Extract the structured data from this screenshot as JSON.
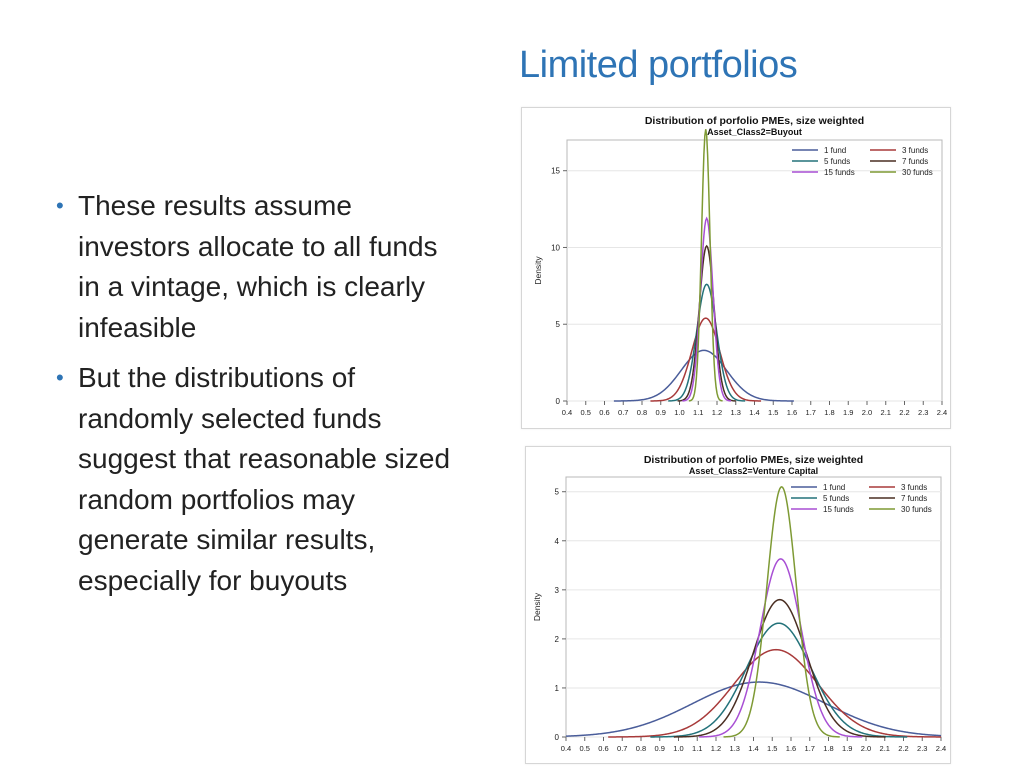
{
  "slide": {
    "title": "Limited portfolios",
    "bullets": [
      "These results assume investors allocate to all funds in a vintage, which is clearly infeasible",
      "But the distributions of randomly selected funds suggest that reasonable sized random portfolios may generate similar results, especially for buyouts"
    ],
    "bullet_icon": "•"
  },
  "chart_data": [
    {
      "type": "line",
      "title": "Distribution of porfolio PMEs, size weighted",
      "subtitle": "Asset_Class2=Buyout",
      "xlabel": "",
      "ylabel": "Density",
      "xlim": [
        0.4,
        2.4
      ],
      "ylim": [
        0,
        17
      ],
      "x_ticks": [
        "0.4",
        "0.5",
        "0.6",
        "0.7",
        "0.8",
        "0.9",
        "1.0",
        "1.1",
        "1.2",
        "1.3",
        "1.4",
        "1.5",
        "1.6",
        "1.7",
        "1.8",
        "1.9",
        "2.0",
        "2.1",
        "2.2",
        "2.3",
        "2.4"
      ],
      "y_ticks": [
        0,
        5,
        10,
        15
      ],
      "grid": true,
      "legend_position": "top-right",
      "series": [
        {
          "name": "1 fund",
          "color": "#4a5d9a",
          "mean": 1.13,
          "peak": 3.3
        },
        {
          "name": "3 funds",
          "color": "#a83a3a",
          "mean": 1.14,
          "peak": 5.4
        },
        {
          "name": "5 funds",
          "color": "#23727a",
          "mean": 1.145,
          "peak": 7.6
        },
        {
          "name": "7 funds",
          "color": "#4a2e22",
          "mean": 1.145,
          "peak": 10.1
        },
        {
          "name": "15 funds",
          "color": "#a84fd4",
          "mean": 1.145,
          "peak": 11.9
        },
        {
          "name": "30 funds",
          "color": "#7e9a34",
          "mean": 1.14,
          "peak": 17.7
        }
      ]
    },
    {
      "type": "line",
      "title": "Distribution of porfolio PMEs, size weighted",
      "subtitle": "Asset_Class2=Venture Capital",
      "xlabel": "",
      "ylabel": "Density",
      "xlim": [
        0.4,
        2.4
      ],
      "ylim": [
        0,
        5.3
      ],
      "x_ticks": [
        "0.4",
        "0.5",
        "0.6",
        "0.7",
        "0.8",
        "0.9",
        "1.0",
        "1.1",
        "1.2",
        "1.3",
        "1.4",
        "1.5",
        "1.6",
        "1.7",
        "1.8",
        "1.9",
        "2.0",
        "2.1",
        "2.2",
        "2.3",
        "2.4"
      ],
      "y_ticks": [
        0,
        1,
        2,
        3,
        4,
        5
      ],
      "grid": true,
      "legend_position": "top-right",
      "series": [
        {
          "name": "1 fund",
          "color": "#4a5d9a",
          "mean": 1.43,
          "peak": 1.12
        },
        {
          "name": "3 funds",
          "color": "#a83a3a",
          "mean": 1.52,
          "peak": 1.78
        },
        {
          "name": "5 funds",
          "color": "#23727a",
          "mean": 1.535,
          "peak": 2.32
        },
        {
          "name": "7 funds",
          "color": "#4a2e22",
          "mean": 1.54,
          "peak": 2.8
        },
        {
          "name": "15 funds",
          "color": "#a84fd4",
          "mean": 1.545,
          "peak": 3.63
        },
        {
          "name": "30 funds",
          "color": "#7e9a34",
          "mean": 1.55,
          "peak": 5.1
        }
      ]
    }
  ]
}
